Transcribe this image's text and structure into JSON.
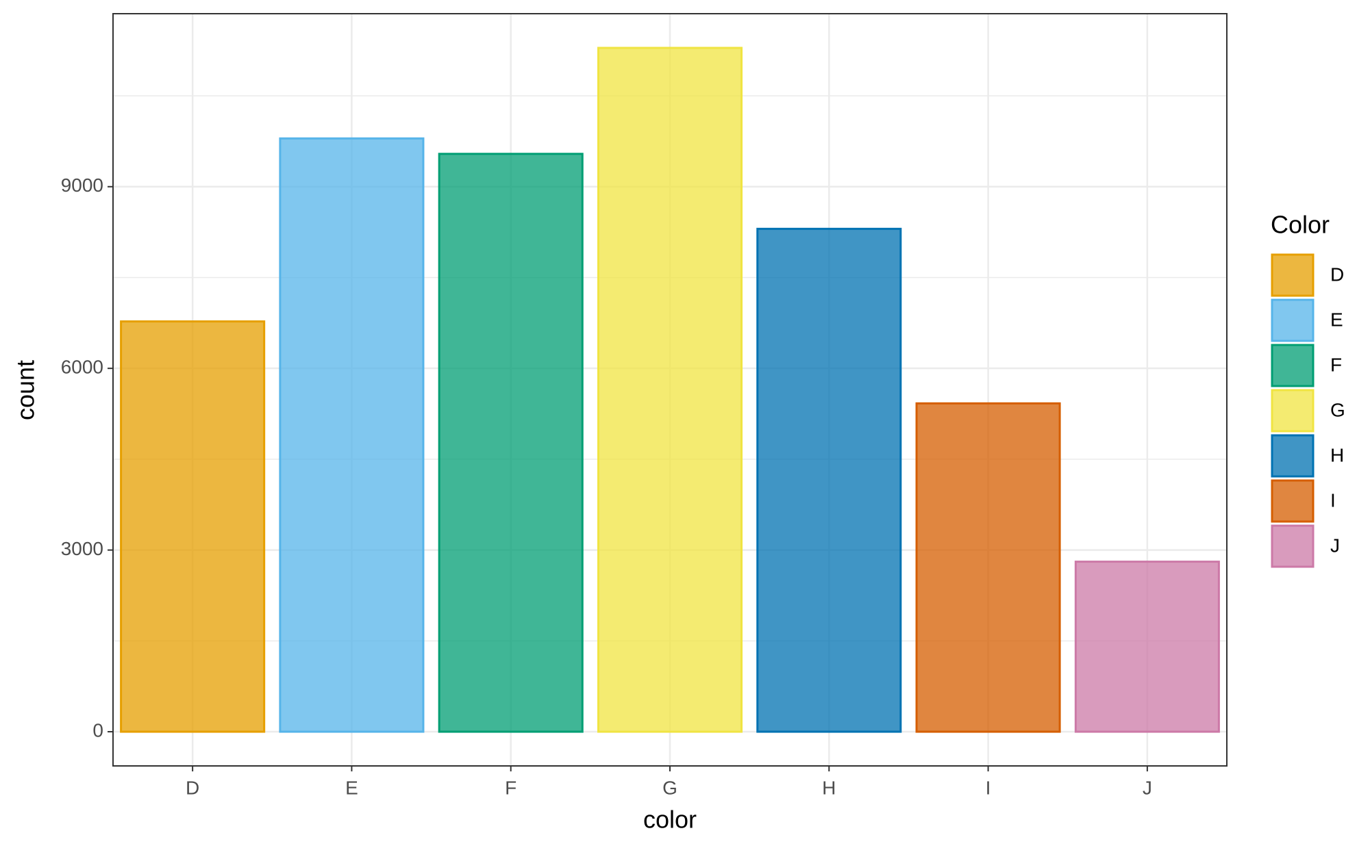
{
  "chart_data": {
    "type": "bar",
    "x_label": "color",
    "y_label": "count",
    "categories": [
      "D",
      "E",
      "F",
      "G",
      "H",
      "I",
      "J"
    ],
    "values": [
      6775,
      9797,
      9542,
      11292,
      8304,
      5422,
      2808
    ],
    "colors": [
      "#E69F00",
      "#56B4E9",
      "#009E73",
      "#F0E442",
      "#0072B2",
      "#D55E00",
      "#CC79A7"
    ],
    "ylim": [
      -564.6,
      11856.6
    ],
    "yticks": [
      0,
      3000,
      6000,
      9000
    ],
    "minor_yticks": [
      1500,
      4500,
      7500,
      10500
    ],
    "grid": true,
    "legend": {
      "title": "Color",
      "position": "right"
    }
  }
}
